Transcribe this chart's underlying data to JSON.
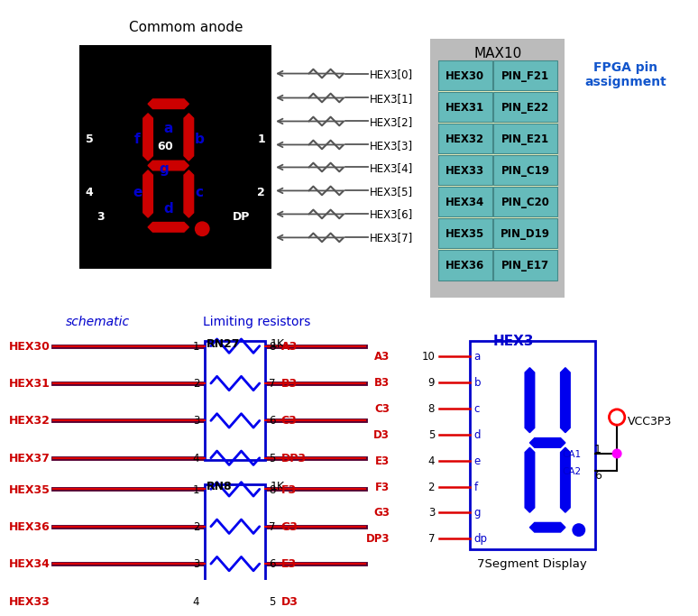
{
  "title_top": "Commom anode",
  "fpga_title": "MAX10",
  "fpga_subtitle": "FPGA pin\nassignment",
  "fpga_rows": [
    [
      "HEX30",
      "PIN_F21"
    ],
    [
      "HEX31",
      "PIN_E22"
    ],
    [
      "HEX32",
      "PIN_E21"
    ],
    [
      "HEX33",
      "PIN_C19"
    ],
    [
      "HEX34",
      "PIN_C20"
    ],
    [
      "HEX35",
      "PIN_D19"
    ],
    [
      "HEX36",
      "PIN_E17"
    ]
  ],
  "hex_signals": [
    "HEX3[0]",
    "HEX3[1]",
    "HEX3[2]",
    "HEX3[3]",
    "HEX3[4]",
    "HEX3[5]",
    "HEX3[6]",
    "HEX3[7]"
  ],
  "schematic_label": "schematic",
  "limiting_resistors_label": "Limiting resistors",
  "rn27_label": "RN27",
  "rn8_label": "RN8",
  "rk_label": "1K",
  "rn27_left": [
    "HEX30",
    "HEX31",
    "HEX32",
    "HEX37"
  ],
  "rn27_right": [
    "A3",
    "B3",
    "C3",
    "DP3"
  ],
  "rn27_pins_left": [
    "1",
    "2",
    "3",
    "4"
  ],
  "rn27_pins_right": [
    "8",
    "7",
    "6",
    "5"
  ],
  "rn8_left": [
    "HEX35",
    "HEX36",
    "HEX34",
    "HEX33"
  ],
  "rn8_right": [
    "F3",
    "G3",
    "E3",
    "D3"
  ],
  "rn8_pins_left": [
    "1",
    "2",
    "3",
    "4"
  ],
  "rn8_pins_right": [
    "8",
    "7",
    "6",
    "5"
  ],
  "hex3_label": "HEX3",
  "hex3_pins_left_labels": [
    "a",
    "b",
    "c",
    "d",
    "e",
    "f",
    "g",
    "dp"
  ],
  "hex3_pins_left_nums": [
    "10",
    "9",
    "8",
    "5",
    "4",
    "2",
    "3",
    "7"
  ],
  "hex3_pins_left_signals": [
    "A3",
    "B3",
    "C3",
    "D3",
    "E3",
    "F3",
    "G3",
    "DP3"
  ],
  "hex3_ca_labels": [
    "CA1",
    "CA2"
  ],
  "hex3_ca_pins": [
    "1",
    "6"
  ],
  "vcc_label": "VCC3P3",
  "seg_display_label": "7Segment Display",
  "bg_color": "#ffffff",
  "display_bg": "#000000",
  "display_color": "#cc0000",
  "schematic_display_color": "#0000ee",
  "wire_color_dark": "#550033",
  "wire_color_red": "#dd0000",
  "text_blue": "#0000cc",
  "text_red": "#cc0000",
  "text_black": "#000000",
  "fpga_cell_bg": "#66bbbb",
  "fpga_table_bg": "#f5f5c0",
  "fpga_gray": "#bbbbbb",
  "arrow_color": "#555555",
  "res_color_top": "#555555"
}
